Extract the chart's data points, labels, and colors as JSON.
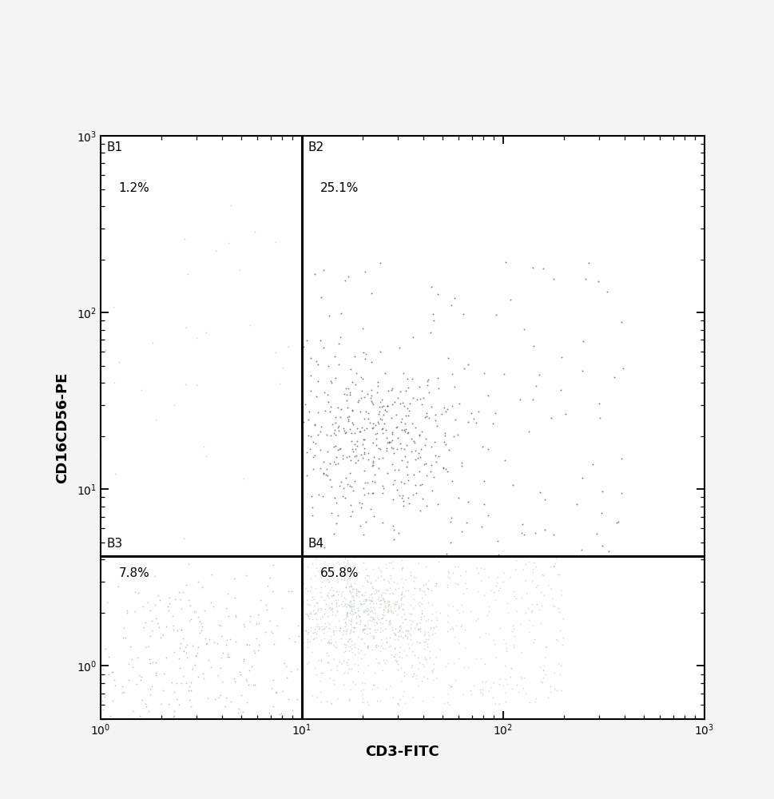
{
  "title": "",
  "xlabel": "CD3-FITC",
  "ylabel": "CD16CD56-PE",
  "xlim": [
    1.0,
    1000.0
  ],
  "ylim": [
    0.5,
    1000.0
  ],
  "gate_x": 10.0,
  "gate_y": 4.2,
  "background_color": "#f5f4f4",
  "plot_bg_color": "#ffffff",
  "n_b1": 25,
  "n_b2": 550,
  "n_b3": 350,
  "n_b4": 1100,
  "seed": 7
}
